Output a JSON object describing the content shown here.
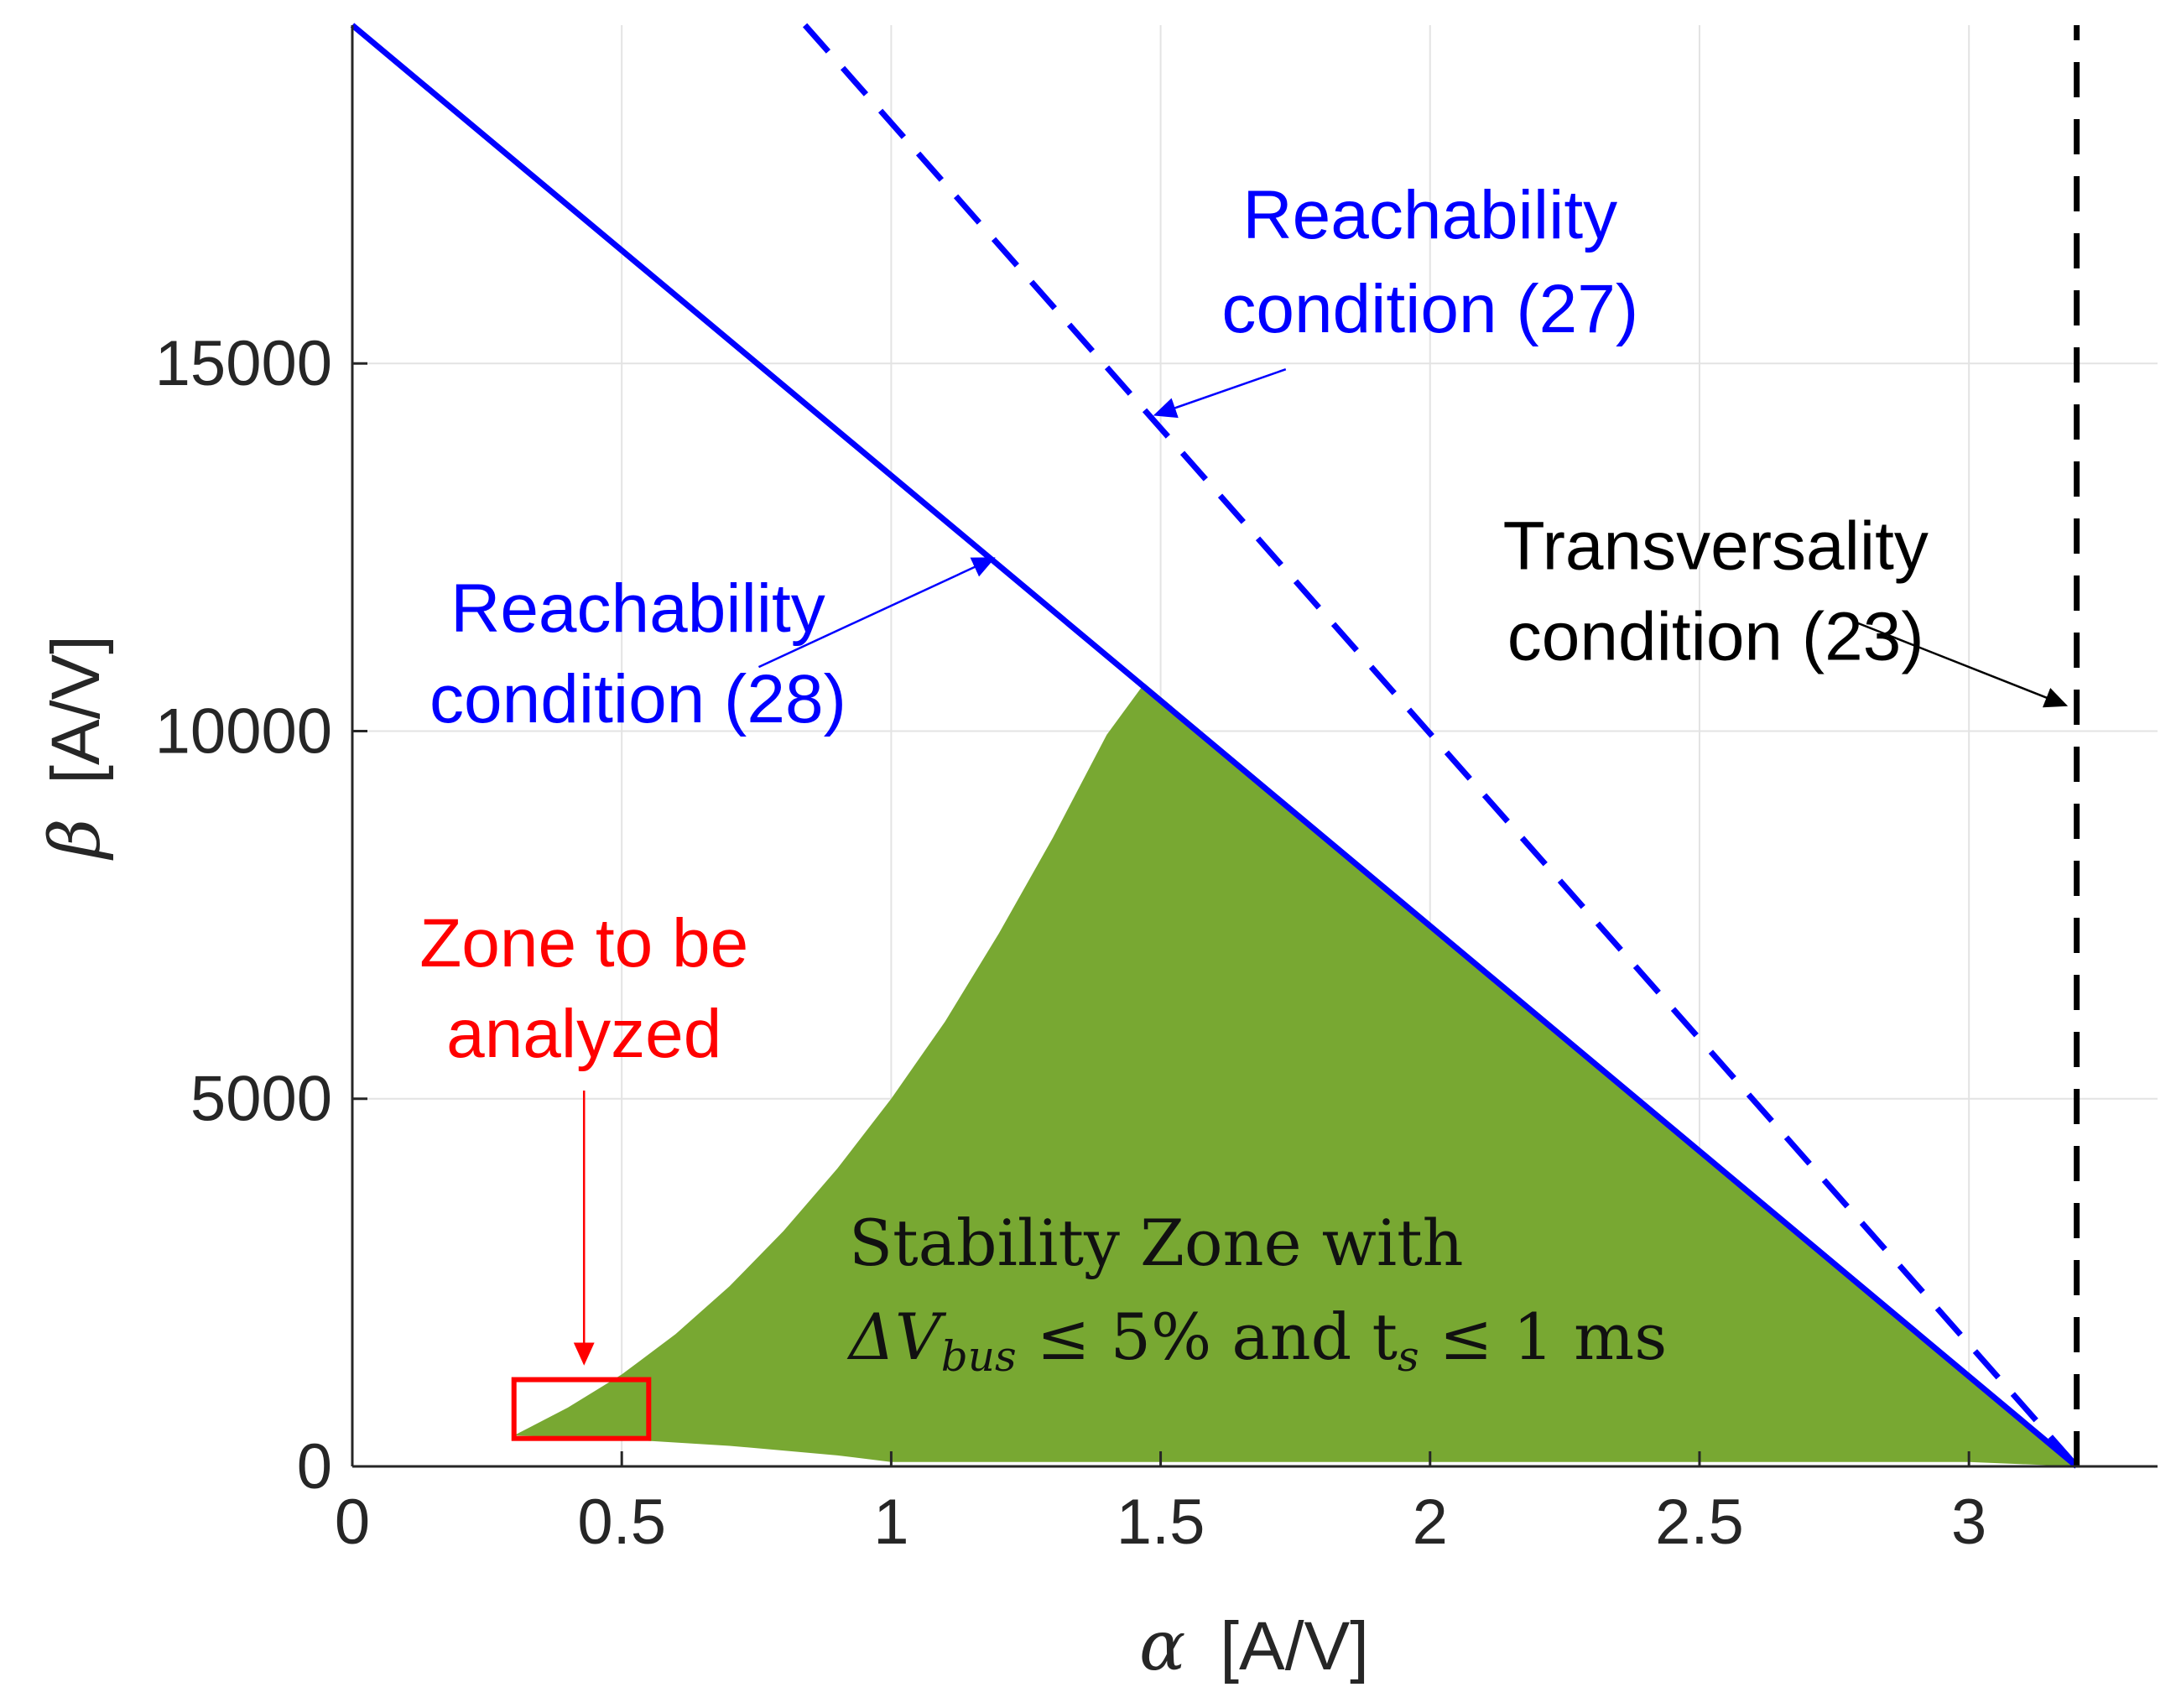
{
  "chart_data": {
    "type": "area",
    "title": "",
    "xlabel": "[A/V]",
    "xlabel_symbol": "α",
    "ylabel": "[A/V]",
    "ylabel_symbol": "β",
    "xlim": [
      0,
      3.35
    ],
    "ylim": [
      0,
      19600
    ],
    "grid": true,
    "x_ticks": [
      {
        "value": 0,
        "label": "0"
      },
      {
        "value": 0.5,
        "label": "0.5"
      },
      {
        "value": 1,
        "label": "1"
      },
      {
        "value": 1.5,
        "label": "1.5"
      },
      {
        "value": 2,
        "label": "2"
      },
      {
        "value": 2.5,
        "label": "2.5"
      },
      {
        "value": 3,
        "label": "3"
      }
    ],
    "y_ticks": [
      {
        "value": 0,
        "label": "0"
      },
      {
        "value": 5000,
        "label": "5000"
      },
      {
        "value": 10000,
        "label": "10000"
      },
      {
        "value": 15000,
        "label": "15000"
      }
    ],
    "series": [
      {
        "name": "Reachability condition (28)",
        "style": "solid",
        "color": "#0000ff",
        "x": [
          0,
          3.2
        ],
        "y": [
          19600,
          0
        ]
      },
      {
        "name": "Reachability condition (27)",
        "style": "dashed",
        "color": "#0000ff",
        "x": [
          0.84,
          3.2
        ],
        "y": [
          19600,
          0
        ]
      },
      {
        "name": "Transversality condition (23)",
        "style": "dashed",
        "color": "#000000",
        "x": [
          3.2,
          3.2
        ],
        "y": [
          0,
          19600
        ]
      }
    ],
    "stability_zone": {
      "color": "#78a832",
      "label_line1": "Stability Zone with",
      "label_line2_prefix": "ΔV",
      "label_line2_sub": "bus",
      "label_line2_mid": " ≤ 5% and t",
      "label_line2_sub2": "s",
      "label_line2_suffix": " ≤ 1 ms",
      "upper_boundary": {
        "x": [
          0.3,
          0.4,
          0.5,
          0.6,
          0.7,
          0.8,
          0.9,
          1.0,
          1.1,
          1.2,
          1.3,
          1.4,
          1.47
        ],
        "y": [
          420,
          800,
          1250,
          1800,
          2450,
          3200,
          4050,
          5000,
          6050,
          7250,
          8550,
          9950,
          10650
        ]
      },
      "lower_boundary": {
        "x": [
          0.3,
          0.5,
          0.7,
          0.9,
          1.0,
          1.5,
          2.0,
          2.5,
          3.0,
          3.2
        ],
        "y": [
          420,
          370,
          280,
          150,
          60,
          60,
          60,
          60,
          60,
          0
        ]
      }
    },
    "zone_box": {
      "x_range": [
        0.3,
        0.55
      ],
      "y_range": [
        380,
        1180
      ],
      "color": "#ff0000"
    },
    "annotations": [
      {
        "id": "reach27",
        "lines": [
          "Reachability",
          "condition (27)"
        ],
        "color": "#0000ff",
        "text_at": [
          2.0,
          16700
        ],
        "arrow_to": [
          1.49,
          14300
        ]
      },
      {
        "id": "reach28",
        "lines": [
          "Reachability",
          "condition (28)"
        ],
        "color": "#0000ff",
        "text_at": [
          0.53,
          11350
        ],
        "arrow_to": [
          1.19,
          12350
        ]
      },
      {
        "id": "trans23",
        "lines": [
          "Transversality",
          "condition (23)"
        ],
        "color": "#000000",
        "text_at": [
          2.53,
          12200
        ],
        "arrow_to": [
          3.18,
          10350
        ]
      },
      {
        "id": "zone",
        "lines": [
          "Zone to be",
          "analyzed"
        ],
        "color": "#ff0000",
        "text_at": [
          0.43,
          6800
        ],
        "arrow_to": [
          0.43,
          1400
        ]
      }
    ]
  }
}
